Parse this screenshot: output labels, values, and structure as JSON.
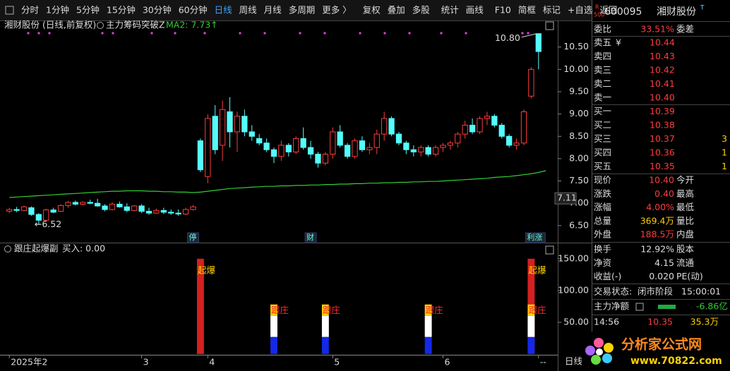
{
  "toolbar": [
    "分时",
    "1分钟",
    "5分钟",
    "15分钟",
    "30分钟",
    "60分钟",
    "日线",
    "周线",
    "月线",
    "多周期",
    "更多 〉",
    "复权",
    "叠加",
    "多股",
    "统计",
    "画线",
    "F10",
    "简框",
    "标记",
    "+自选",
    "返回"
  ],
  "toolbar_active": "日线",
  "chart_data": [
    {
      "type": "candlestick",
      "title": "湘财股份 (日线,前复权)",
      "indicator": "主力筹码突破Z",
      "ma_label": "MA2: 7.73↑",
      "ma_color": "#33cc33",
      "up_color": "#ff3c3c",
      "down_color": "#54fcfc",
      "categories": [
        "2025年2",
        null,
        null,
        null,
        null,
        null,
        null,
        null,
        null,
        null,
        null,
        null,
        null,
        null,
        null,
        null,
        null,
        null,
        "3",
        null,
        null,
        null,
        null,
        null,
        null,
        null,
        null,
        "4",
        null,
        null,
        null,
        null,
        null,
        null,
        null,
        null,
        null,
        null,
        null,
        null,
        null,
        null,
        null,
        null,
        "5",
        null,
        null,
        null,
        null,
        null,
        null,
        null,
        null,
        null,
        null,
        null,
        null,
        null,
        null,
        "6",
        null,
        null,
        null,
        null,
        null,
        null,
        null,
        null,
        null,
        null,
        null,
        null,
        "--"
      ],
      "open": [
        6.82,
        6.86,
        6.84,
        6.9,
        6.75,
        6.62,
        6.85,
        6.82,
        6.95,
        7.02,
        6.98,
        7.02,
        7.0,
        6.94,
        6.86,
        6.98,
        6.92,
        6.84,
        6.94,
        6.82,
        6.78,
        6.84,
        6.8,
        6.78,
        6.76,
        6.86,
        8.4,
        7.6,
        8.95,
        8.3,
        9.05,
        8.6,
        8.95,
        8.6,
        8.45,
        8.35,
        8.2,
        8.05,
        8.3,
        8.15,
        8.45,
        8.25,
        8.1,
        7.9,
        8.1,
        8.6,
        8.3,
        8.05,
        8.4,
        8.2,
        8.25,
        8.55,
        8.9,
        8.55,
        8.35,
        8.2,
        8.15,
        8.25,
        8.1,
        8.25,
        8.3,
        8.35,
        8.55,
        8.75,
        8.6,
        8.9,
        8.95,
        8.75,
        8.5,
        8.3,
        8.35,
        9.4,
        10.8
      ],
      "high": [
        6.9,
        6.92,
        6.95,
        6.93,
        6.78,
        6.88,
        6.9,
        6.98,
        7.05,
        7.06,
        7.04,
        7.08,
        7.1,
        6.98,
        7.02,
        7.04,
        7.0,
        6.96,
        6.98,
        6.9,
        6.88,
        6.9,
        6.86,
        6.86,
        6.9,
        6.96,
        8.45,
        9.0,
        9.2,
        9.3,
        9.38,
        9.05,
        9.1,
        8.75,
        8.55,
        8.45,
        8.25,
        8.4,
        8.35,
        8.5,
        8.7,
        8.4,
        8.15,
        8.15,
        8.7,
        8.75,
        8.35,
        8.45,
        8.5,
        8.35,
        8.65,
        9.05,
        8.95,
        8.6,
        8.4,
        8.3,
        8.3,
        8.3,
        8.3,
        8.35,
        8.4,
        8.6,
        8.85,
        8.9,
        8.95,
        9.05,
        9.0,
        8.8,
        8.55,
        8.45,
        9.1,
        10.05,
        10.8
      ],
      "low": [
        6.78,
        6.8,
        6.82,
        6.72,
        6.52,
        6.6,
        6.78,
        6.8,
        6.9,
        6.95,
        6.96,
        6.98,
        6.92,
        6.82,
        6.84,
        6.9,
        6.8,
        6.82,
        6.78,
        6.74,
        6.76,
        6.76,
        6.74,
        6.72,
        6.74,
        6.84,
        7.7,
        7.45,
        8.1,
        7.95,
        8.25,
        8.15,
        8.5,
        8.4,
        8.3,
        8.15,
        7.9,
        7.95,
        8.05,
        8.1,
        8.2,
        8.0,
        7.8,
        7.85,
        8.0,
        8.25,
        8.0,
        8.0,
        8.15,
        8.1,
        8.1,
        8.4,
        8.5,
        8.3,
        8.1,
        8.05,
        8.05,
        8.05,
        8.05,
        8.15,
        8.2,
        8.25,
        8.45,
        8.55,
        8.55,
        8.75,
        8.7,
        8.45,
        8.25,
        8.2,
        8.3,
        9.35,
        10.0
      ],
      "close": [
        6.86,
        6.84,
        6.92,
        6.75,
        6.62,
        6.85,
        6.8,
        6.95,
        7.02,
        6.98,
        7.02,
        7.0,
        6.94,
        6.86,
        6.98,
        6.92,
        6.84,
        6.94,
        6.82,
        6.78,
        6.84,
        6.8,
        6.78,
        6.76,
        6.86,
        6.92,
        7.75,
        8.9,
        8.2,
        9.1,
        8.6,
        8.95,
        8.6,
        8.5,
        8.35,
        8.2,
        8.05,
        8.3,
        8.15,
        8.45,
        8.25,
        8.1,
        7.9,
        8.1,
        8.6,
        8.3,
        8.05,
        8.4,
        8.2,
        8.25,
        8.55,
        8.9,
        8.55,
        8.35,
        8.2,
        8.15,
        8.25,
        8.1,
        8.25,
        8.3,
        8.35,
        8.55,
        8.75,
        8.6,
        8.9,
        8.95,
        8.75,
        8.5,
        8.3,
        8.35,
        9.05,
        10.0,
        10.4
      ],
      "ma": [
        7.13,
        7.14,
        7.15,
        7.16,
        7.17,
        7.18,
        7.19,
        7.2,
        7.21,
        7.22,
        7.23,
        7.24,
        7.25,
        7.26,
        7.27,
        7.27,
        7.28,
        7.28,
        7.28,
        7.27,
        7.27,
        7.26,
        7.26,
        7.25,
        7.25,
        7.24,
        7.25,
        7.27,
        7.29,
        7.31,
        7.33,
        7.34,
        7.35,
        7.36,
        7.37,
        7.38,
        7.38,
        7.39,
        7.39,
        7.4,
        7.4,
        7.41,
        7.41,
        7.42,
        7.42,
        7.43,
        7.43,
        7.44,
        7.44,
        7.45,
        7.45,
        7.46,
        7.46,
        7.47,
        7.47,
        7.48,
        7.48,
        7.49,
        7.49,
        7.5,
        7.51,
        7.52,
        7.53,
        7.54,
        7.55,
        7.56,
        7.58,
        7.59,
        7.6,
        7.62,
        7.64,
        7.66,
        7.69,
        7.73
      ],
      "xlim": [
        -0.5,
        72.5
      ],
      "ylim": [
        6.15,
        11.08
      ],
      "yticks": [
        {
          "value": 10.5,
          "label": "10.50"
        },
        {
          "value": 10,
          "label": "10.00"
        },
        {
          "value": 9.5,
          "label": "9.50"
        },
        {
          "value": 9,
          "label": "9.00"
        },
        {
          "value": 8.5,
          "label": "8.50"
        },
        {
          "value": 8,
          "label": "8.00"
        },
        {
          "value": 7.5,
          "label": "7.50"
        },
        {
          "value": 7,
          "label": "7.00"
        },
        {
          "value": 6.5,
          "label": "6.50"
        }
      ],
      "markers": [
        {
          "x": 25,
          "text": "停"
        },
        {
          "x": 41,
          "text": "财"
        },
        {
          "x": 71,
          "text": "利涨"
        }
      ],
      "high_label": {
        "value": 10.8,
        "label": "10.80"
      },
      "low_label": {
        "value": 6.52,
        "label": "←6.52"
      },
      "last_marker": {
        "value": 7.11,
        "label": "7.11"
      }
    },
    {
      "type": "bar",
      "indicator": "跟庄起爆副",
      "buy_label": "买入: 0.00",
      "x": [
        26,
        36,
        43,
        57,
        71
      ],
      "xlim": [
        -0.5,
        72.5
      ],
      "series": [
        {
          "color": "#d42020",
          "values": [
            150,
            null,
            null,
            null,
            150
          ]
        },
        {
          "color": "#1428e8",
          "values": [
            null,
            27,
            27,
            27,
            27
          ]
        },
        {
          "color": "#ffffff",
          "values": [
            null,
            33,
            33,
            33,
            33
          ]
        },
        {
          "color": "#ffd200",
          "values": [
            null,
            18,
            18,
            18,
            18
          ]
        }
      ],
      "labels": [
        {
          "x": 26,
          "series": 0,
          "text": "起爆",
          "color": "#ffd200"
        },
        {
          "x": 71,
          "series": 0,
          "text": "起爆",
          "color": "#ffd200"
        },
        {
          "x": 36,
          "series": 3,
          "text": "跟庄",
          "color": "#ff2a2a"
        },
        {
          "x": 43,
          "series": 3,
          "text": "跟庄",
          "color": "#ff2a2a"
        },
        {
          "x": 57,
          "series": 3,
          "text": "跟庄",
          "color": "#ff2a2a"
        },
        {
          "x": 71,
          "series": 3,
          "text": "跟庄",
          "color": "#ff2a2a"
        }
      ],
      "ylim": [
        0,
        172
      ],
      "yticks": [
        {
          "value": 150,
          "label": "150.00"
        },
        {
          "value": 100,
          "label": "100.00"
        },
        {
          "value": 50,
          "label": "50.00"
        }
      ]
    }
  ],
  "panel": {
    "badge_top": "R",
    "badge_bottom": "500",
    "code": "600095",
    "name": "湘财股份",
    "name_mark": "T",
    "wei": {
      "label": "委比",
      "value": "33.51%",
      "label2": "委差"
    },
    "book": [
      {
        "label": "卖五",
        "symbol": "¥",
        "price": "10.44"
      },
      {
        "label": "卖四",
        "price": "10.43"
      },
      {
        "label": "卖三",
        "price": "10.42"
      },
      {
        "label": "卖二",
        "price": "10.41"
      },
      {
        "label": "卖一",
        "price": "10.40"
      },
      {
        "label": "买一",
        "price": "10.39"
      },
      {
        "label": "买二",
        "price": "10.38"
      },
      {
        "label": "买三",
        "price": "10.37",
        "vol": "3"
      },
      {
        "label": "买四",
        "price": "10.36",
        "vol": "1"
      },
      {
        "label": "买五",
        "price": "10.35",
        "vol": "1"
      }
    ],
    "rows": [
      {
        "label": "现价",
        "value": "10.40",
        "label2": "今开",
        "color": "#ff3c3c"
      },
      {
        "label": "涨跌",
        "value": "0.40",
        "label2": "最高",
        "color": "#ff3c3c"
      },
      {
        "label": "涨幅",
        "value": "4.00%",
        "label2": "最低",
        "color": "#ff3c3c"
      },
      {
        "label": "总量",
        "value": "369.4万",
        "label2": "量比",
        "color": "#ffd200"
      },
      {
        "label": "外盘",
        "value": "188.5万",
        "label2": "内盘",
        "color": "#ff3c3c"
      },
      {
        "label": "换手",
        "value": "12.92%",
        "label2": "股本",
        "color": "#dddddd"
      },
      {
        "label": "净资",
        "value": "4.15",
        "label2": "流通",
        "color": "#dddddd"
      },
      {
        "label": "收益(-)",
        "value": "0.020",
        "label2": "PE(动)",
        "color": "#dddddd"
      }
    ],
    "status": {
      "label": "交易状态:",
      "phase": "闭市阶段",
      "time": "15:00:01"
    },
    "main_net": {
      "label": "主力净额",
      "value": "-6.86亿"
    },
    "tick": {
      "time": "14:56",
      "price": "10.35",
      "volume": "35.3万"
    }
  },
  "footer_period": "日线",
  "logo": {
    "name": "分析家公式网",
    "url": "www.70822.com"
  }
}
